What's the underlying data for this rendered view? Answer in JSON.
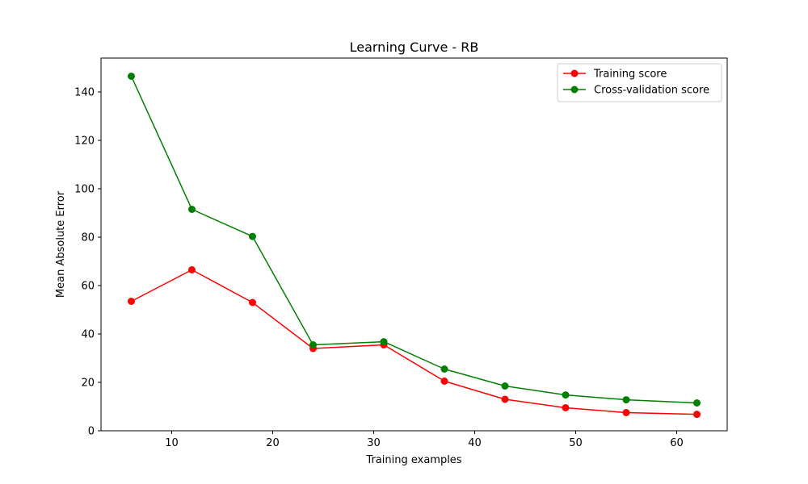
{
  "chart_data": {
    "type": "line",
    "title": "Learning Curve - RB",
    "xlabel": "Training examples",
    "ylabel": "Mean Absolute Error",
    "xlim": [
      3,
      65
    ],
    "ylim": [
      0,
      154
    ],
    "xticks": [
      10,
      20,
      30,
      40,
      50,
      60
    ],
    "yticks": [
      0,
      20,
      40,
      60,
      80,
      100,
      120,
      140
    ],
    "grid": false,
    "legend_position": "top-right",
    "x": [
      6,
      12,
      18,
      24,
      31,
      37,
      43,
      49,
      55,
      62
    ],
    "series": [
      {
        "name": "Training score",
        "color": "#ff0000",
        "marker": "circle",
        "values": [
          53.5,
          66.5,
          53.0,
          34.0,
          35.5,
          20.5,
          13.0,
          9.5,
          7.5,
          6.8
        ]
      },
      {
        "name": "Cross-validation score",
        "color": "#008000",
        "marker": "circle",
        "values": [
          146.5,
          91.5,
          80.3,
          35.5,
          36.8,
          25.5,
          18.5,
          14.8,
          12.8,
          11.5
        ]
      }
    ]
  }
}
